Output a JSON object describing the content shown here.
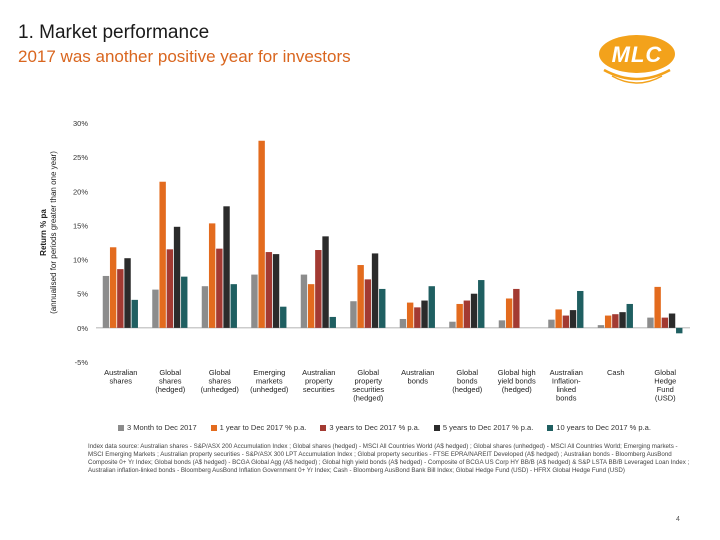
{
  "header": {
    "title": "1. Market performance",
    "subtitle": "2017 was another positive year for investors"
  },
  "logo": {
    "text": "MLC",
    "color": "#f3a21b"
  },
  "chart_data": {
    "type": "bar",
    "ylabel_lines": [
      "Return % pa",
      "(annualised for periods greater than one year)"
    ],
    "ylim": [
      -5,
      30
    ],
    "yticks": [
      -5,
      0,
      5,
      10,
      15,
      20,
      25,
      30
    ],
    "ytick_labels": [
      "-5%",
      "0%",
      "5%",
      "10%",
      "15%",
      "20%",
      "25%",
      "30%"
    ],
    "grid": false,
    "legend_position": "bottom",
    "categories": [
      [
        "Australian",
        "shares"
      ],
      [
        "Global",
        "shares",
        "(hedged)"
      ],
      [
        "Global",
        "shares",
        "(unhedged)"
      ],
      [
        "Emerging",
        "markets",
        "(unhedged)"
      ],
      [
        "Australian",
        "property",
        "securities"
      ],
      [
        "Global",
        "property",
        "securities",
        "(hedged)"
      ],
      [
        "Australian",
        "bonds"
      ],
      [
        "Global",
        "bonds",
        "(hedged)"
      ],
      [
        "Global high",
        "yield bonds",
        "(hedged)"
      ],
      [
        "Australian",
        "Inflation-",
        "linked",
        "bonds"
      ],
      [
        "Cash"
      ],
      [
        "Global",
        "Hedge",
        "Fund",
        "(USD)"
      ]
    ],
    "series": [
      {
        "name": "3 Month to Dec 2017",
        "color": "#8c8c8c",
        "values": [
          7.6,
          5.6,
          6.1,
          7.8,
          7.8,
          3.9,
          1.3,
          0.9,
          1.1,
          1.2,
          0.4,
          1.5
        ]
      },
      {
        "name": "1 year to Dec 2017 % p.a.",
        "color": "#e36b1e",
        "values": [
          11.8,
          21.4,
          15.3,
          27.4,
          6.4,
          9.2,
          3.7,
          3.5,
          4.3,
          2.7,
          1.8,
          6.0
        ]
      },
      {
        "name": "3 years to Dec 2017 % p.a.",
        "color": "#a33a32",
        "values": [
          8.6,
          11.5,
          11.6,
          11.1,
          11.4,
          7.1,
          3.0,
          4.0,
          5.7,
          1.8,
          2.0,
          1.5
        ]
      },
      {
        "name": "5 years to Dec 2017 % p.a.",
        "color": "#2b2b2b",
        "values": [
          10.2,
          14.8,
          17.8,
          10.8,
          13.4,
          10.9,
          4.0,
          5.0,
          0,
          2.6,
          2.3,
          2.1
        ]
      },
      {
        "name": "10 years to Dec 2017 % p.a.",
        "color": "#1f5f61",
        "values": [
          4.1,
          7.5,
          6.4,
          3.1,
          1.6,
          5.7,
          6.1,
          7.0,
          0,
          5.4,
          3.5,
          -0.8
        ]
      }
    ]
  },
  "notes": "Index data source: Australian shares - S&P/ASX 200 Accumulation Index ; Global shares (hedged) - MSCI All Countries World (A$ hedged) ; Global shares (unhedged) - MSCI All Countries World; Emerging markets - MSCI Emerging Markets ; Australian property securities - S&P/ASX 300 LPT Accumulation Index ; Global property securities - FTSE EPRA/NAREIT Developed (A$ hedged) ; Australian bonds - Bloomberg AusBond Composite 0+ Yr Index; Global bonds (A$ hedged) - BCGA Global Agg (A$ hedged) ; Global high yield bonds (A$ hedged) - Composite of BCGA US Corp HY BB/B (A$ hedged) & S&P LSTA BB/B Leveraged Loan Index ; Australian inflation-linked bonds - Bloomberg AusBond Inflation Government 0+ Yr Index; Cash - Bloomberg AusBond Bank Bill Index; Global Hedge Fund (USD) - HFRX Global Hedge Fund (USD)",
  "page_number": "4"
}
